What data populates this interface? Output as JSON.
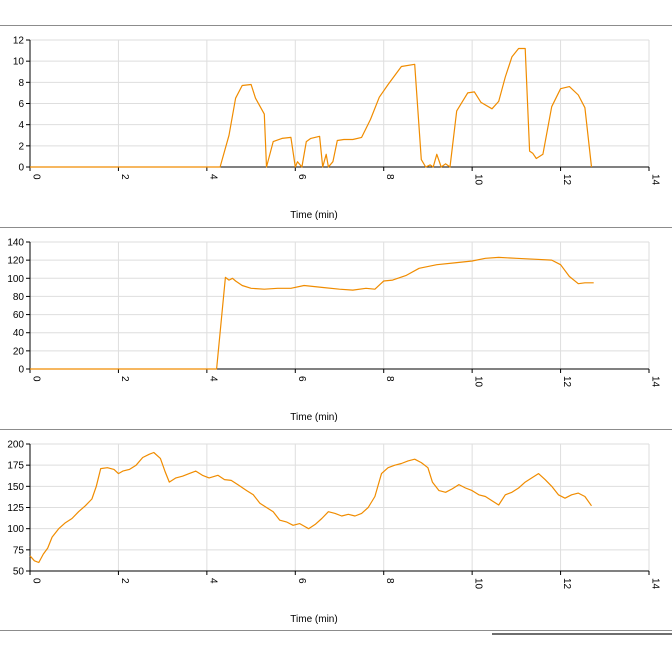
{
  "chart_data": [
    {
      "type": "line",
      "xlabel": "Time (min)",
      "ylabel": "",
      "xlim": [
        0,
        14
      ],
      "ylim": [
        0,
        12
      ],
      "xticks": [
        0,
        2,
        4,
        6,
        8,
        10,
        12,
        14
      ],
      "yticks": [
        0,
        2,
        4,
        6,
        8,
        10,
        12
      ],
      "grid": true,
      "series": [
        {
          "color": "#f08c00",
          "x": [
            0,
            1,
            2,
            3,
            4,
            4.3,
            4.5,
            4.65,
            4.8,
            5.0,
            5.1,
            5.3,
            5.35,
            5.5,
            5.7,
            5.9,
            6.0,
            6.05,
            6.15,
            6.25,
            6.35,
            6.55,
            6.62,
            6.7,
            6.75,
            6.85,
            6.95,
            7.1,
            7.3,
            7.5,
            7.7,
            7.9,
            8.1,
            8.4,
            8.7,
            8.85,
            8.95,
            9.05,
            9.12,
            9.2,
            9.3,
            9.4,
            9.5,
            9.65,
            9.9,
            10.05,
            10.2,
            10.45,
            10.6,
            10.75,
            10.9,
            11.05,
            11.2,
            11.3,
            11.37,
            11.45,
            11.6,
            11.8,
            12.0,
            12.2,
            12.4,
            12.55,
            12.7
          ],
          "y": [
            0,
            0,
            0,
            0,
            0,
            0,
            3,
            6.5,
            7.7,
            7.8,
            6.5,
            5,
            0,
            2.4,
            2.7,
            2.8,
            0,
            0.5,
            0,
            2.4,
            2.7,
            2.9,
            0,
            1.2,
            0,
            0.5,
            2.5,
            2.6,
            2.6,
            2.8,
            4.5,
            6.6,
            7.8,
            9.5,
            9.7,
            0.7,
            0,
            0.2,
            0,
            1.2,
            0,
            0.3,
            0,
            5.3,
            7,
            7.1,
            6.1,
            5.5,
            6.2,
            8.5,
            10.4,
            11.2,
            11.2,
            1.5,
            1.3,
            0.8,
            1.2,
            5.7,
            7.4,
            7.6,
            6.8,
            5.6,
            0
          ]
        }
      ]
    },
    {
      "type": "line",
      "xlabel": "Time (min)",
      "ylabel": "",
      "xlim": [
        0,
        14
      ],
      "ylim": [
        0,
        140
      ],
      "xticks": [
        0,
        2,
        4,
        6,
        8,
        10,
        12,
        14
      ],
      "yticks": [
        0,
        20,
        40,
        60,
        80,
        100,
        120,
        140
      ],
      "grid": true,
      "series": [
        {
          "color": "#f08c00",
          "x": [
            0,
            1,
            2,
            3,
            4,
            4.22,
            4.42,
            4.5,
            4.58,
            4.65,
            4.8,
            5.0,
            5.3,
            5.6,
            5.9,
            6.2,
            6.6,
            7.0,
            7.3,
            7.6,
            7.8,
            8.0,
            8.2,
            8.5,
            8.8,
            9.2,
            9.6,
            10.0,
            10.3,
            10.6,
            11.0,
            11.4,
            11.8,
            12.0,
            12.2,
            12.4,
            12.55,
            12.75
          ],
          "y": [
            0,
            0,
            0,
            0,
            0,
            0,
            101,
            98,
            100,
            97,
            92,
            89,
            88,
            89,
            89,
            92,
            90,
            88,
            87,
            89,
            88,
            97,
            98,
            103,
            111,
            115,
            117,
            119,
            122,
            123,
            122,
            121,
            120,
            115,
            102,
            94,
            95,
            95
          ]
        }
      ]
    },
    {
      "type": "line",
      "xlabel": "Time (min)",
      "ylabel": "",
      "xlim": [
        0,
        14
      ],
      "ylim": [
        50,
        200
      ],
      "xticks": [
        0,
        2,
        4,
        6,
        8,
        10,
        12,
        14
      ],
      "yticks": [
        50,
        75,
        100,
        125,
        150,
        175,
        200
      ],
      "grid": true,
      "series": [
        {
          "color": "#f08c00",
          "x": [
            0,
            0.1,
            0.2,
            0.3,
            0.4,
            0.5,
            0.65,
            0.8,
            0.95,
            1.1,
            1.25,
            1.4,
            1.5,
            1.6,
            1.75,
            1.9,
            2.0,
            2.1,
            2.25,
            2.4,
            2.55,
            2.7,
            2.8,
            2.95,
            3.05,
            3.15,
            3.3,
            3.45,
            3.6,
            3.75,
            3.9,
            4.05,
            4.25,
            4.4,
            4.55,
            4.7,
            4.9,
            5.05,
            5.2,
            5.35,
            5.5,
            5.65,
            5.8,
            5.95,
            6.1,
            6.2,
            6.3,
            6.45,
            6.6,
            6.75,
            6.9,
            7.05,
            7.2,
            7.35,
            7.5,
            7.65,
            7.8,
            7.95,
            8.1,
            8.25,
            8.4,
            8.55,
            8.7,
            8.85,
            9.0,
            9.1,
            9.25,
            9.4,
            9.55,
            9.7,
            9.85,
            10.0,
            10.15,
            10.3,
            10.45,
            10.6,
            10.75,
            10.9,
            11.05,
            11.2,
            11.35,
            11.5,
            11.65,
            11.8,
            11.95,
            12.1,
            12.25,
            12.4,
            12.55,
            12.7
          ],
          "y": [
            68,
            62,
            60,
            70,
            77,
            90,
            100,
            107,
            112,
            120,
            127,
            135,
            150,
            171,
            172,
            170,
            165,
            168,
            170,
            175,
            184,
            188,
            190,
            183,
            168,
            155,
            160,
            162,
            165,
            168,
            163,
            160,
            163,
            158,
            157,
            152,
            145,
            140,
            130,
            125,
            120,
            110,
            108,
            104,
            106,
            103,
            100,
            105,
            112,
            120,
            118,
            115,
            117,
            115,
            118,
            125,
            138,
            165,
            172,
            175,
            177,
            180,
            182,
            178,
            172,
            155,
            145,
            143,
            147,
            152,
            148,
            145,
            140,
            138,
            133,
            128,
            140,
            143,
            148,
            155,
            160,
            165,
            158,
            150,
            140,
            136,
            140,
            142,
            138,
            127
          ]
        }
      ]
    }
  ]
}
